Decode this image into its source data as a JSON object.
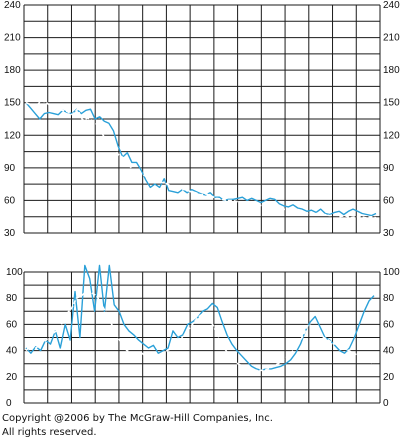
{
  "chart_data": [
    {
      "type": "line",
      "title": "",
      "xlabel": "",
      "ylabel": "",
      "ylim": [
        30,
        240
      ],
      "yticks": [
        30,
        60,
        90,
        120,
        150,
        180,
        210,
        240
      ],
      "grid": true,
      "series": [
        {
          "color": "#2aa0d8",
          "values": [
            150,
            145,
            140,
            135,
            140,
            141,
            140,
            139,
            143,
            141,
            140,
            144,
            140,
            143,
            144,
            135,
            137,
            133,
            131,
            124,
            110,
            100,
            104,
            95,
            95,
            88,
            79,
            72,
            75,
            72,
            80,
            69,
            68,
            67,
            70,
            67,
            70,
            68,
            66,
            65,
            67,
            63,
            63,
            60,
            61,
            61,
            62,
            63,
            60,
            62,
            60,
            58,
            60,
            62,
            61,
            57,
            55,
            54,
            56,
            53,
            52,
            50,
            51,
            49,
            52,
            48,
            47,
            49,
            50,
            47,
            50,
            52,
            50,
            48,
            47,
            46,
            48
          ]
        },
        {
          "color": "#ffffff",
          "values": [
            150,
            148,
            147,
            152,
            150,
            146,
            148,
            143,
            142,
            139,
            144,
            134,
            136,
            133,
            129,
            120,
            112,
            108,
            102,
            99,
            92,
            88,
            86,
            83,
            81,
            80,
            77,
            76,
            74,
            71,
            70,
            70,
            68,
            67,
            65,
            66,
            64,
            62,
            61,
            60,
            60,
            59,
            58,
            57,
            57,
            56,
            55,
            55,
            54,
            53,
            52,
            51,
            50,
            49,
            49,
            47,
            48,
            48,
            47,
            46,
            47,
            45,
            46,
            44,
            45,
            45,
            44,
            45,
            44
          ]
        }
      ]
    },
    {
      "type": "line",
      "title": "",
      "xlabel": "",
      "ylabel": "",
      "ylim": [
        0,
        100
      ],
      "yticks": [
        0,
        20,
        40,
        60,
        80,
        100
      ],
      "grid": true,
      "series": [
        {
          "color": "#2aa0d8",
          "values": [
            42,
            38,
            43,
            40,
            48,
            45,
            55,
            42,
            60,
            48,
            85,
            50,
            105,
            95,
            70,
            105,
            70,
            105,
            75,
            70,
            60,
            55,
            52,
            48,
            45,
            42,
            44,
            38,
            40,
            42,
            55,
            50,
            52,
            60,
            62,
            65,
            70,
            72,
            76,
            73,
            62,
            52,
            45,
            40,
            36,
            32,
            28,
            26,
            25,
            26,
            26,
            27,
            28,
            30,
            33,
            38,
            45,
            55,
            62,
            66,
            58,
            50,
            48,
            44,
            40,
            38,
            42,
            50,
            60,
            70,
            78,
            82
          ]
        },
        {
          "color": "#ffffff",
          "values": [
            40,
            44,
            42,
            46,
            48,
            52,
            55,
            60,
            68,
            72,
            80,
            82,
            85,
            84,
            82,
            75,
            68,
            60,
            52,
            45,
            40,
            38,
            36,
            38,
            35,
            37,
            35,
            38,
            40,
            42,
            45,
            50,
            55,
            60,
            65,
            68,
            66,
            60,
            52,
            44,
            38,
            33,
            30,
            28,
            26,
            25,
            25,
            25,
            26,
            28,
            30,
            33,
            36,
            40,
            45,
            52,
            60,
            58,
            55,
            50,
            48,
            45,
            46,
            42,
            40,
            38,
            36,
            35,
            32,
            30
          ]
        }
      ]
    }
  ],
  "copyright": {
    "line1": "Copyright @2006 by The McGraw-Hill Companies, Inc.",
    "line2": "All rights reserved."
  }
}
